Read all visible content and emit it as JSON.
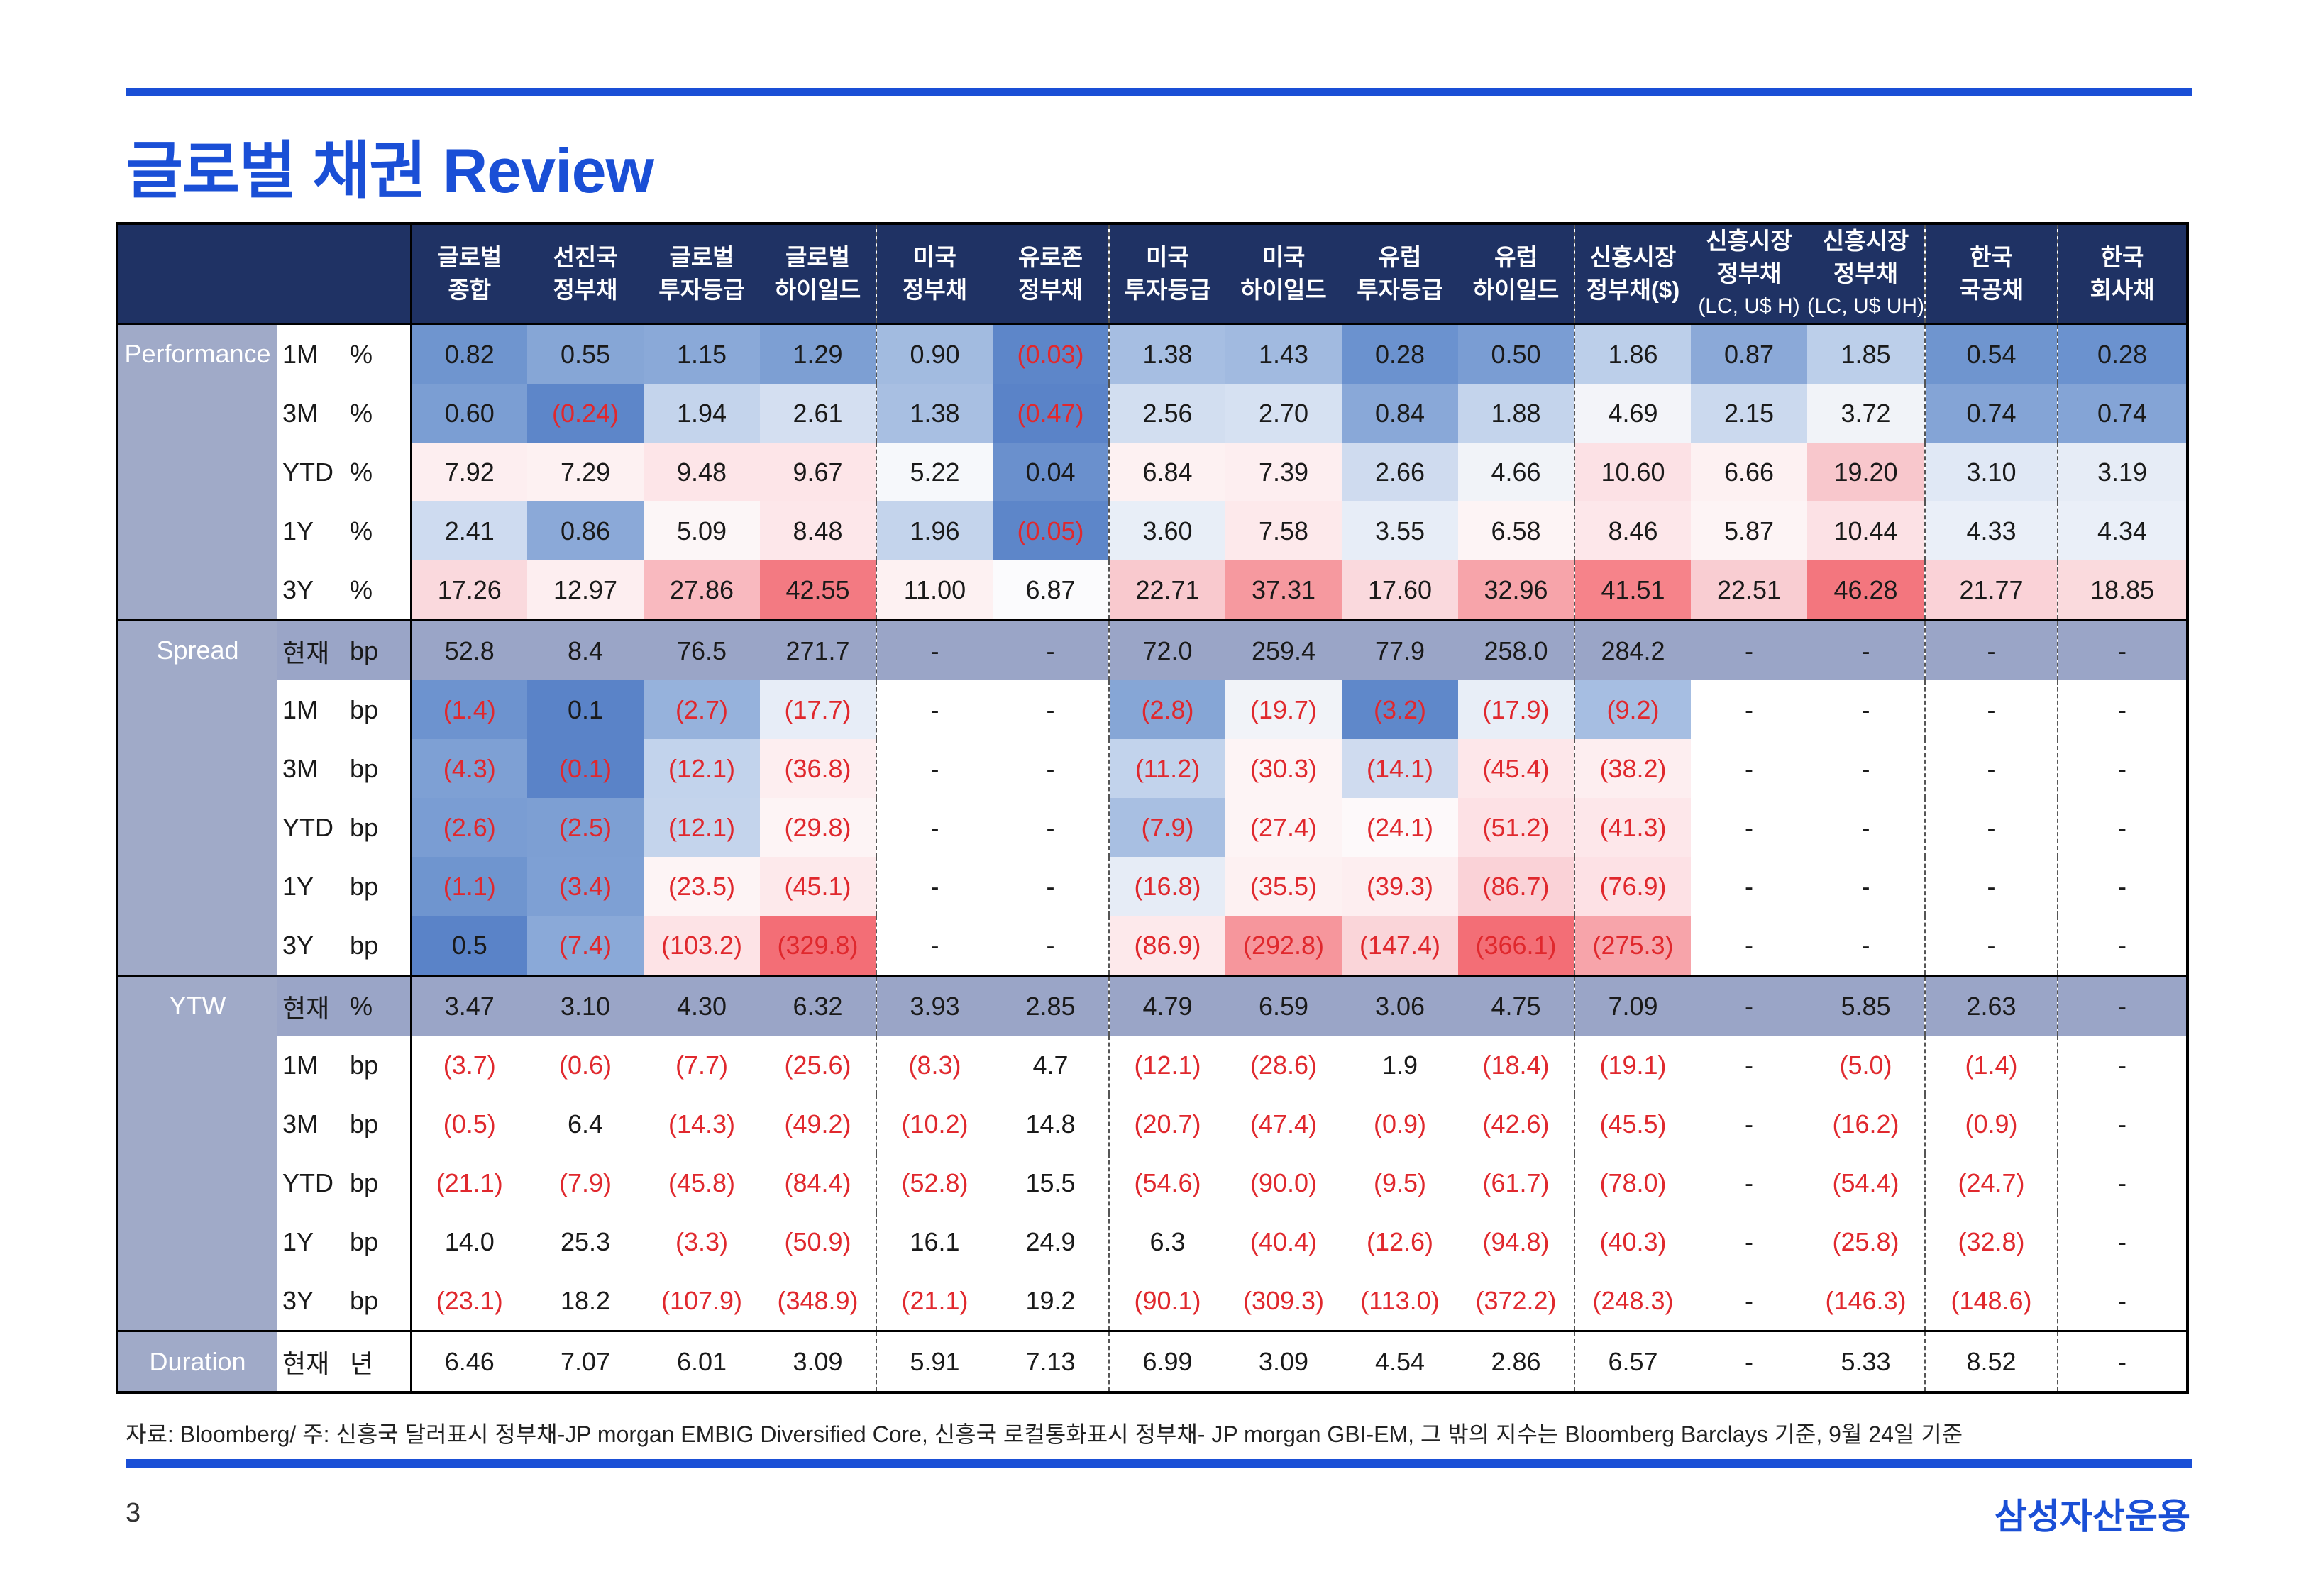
{
  "page": {
    "title": "글로벌 채권 Review",
    "page_number": "3",
    "brand": "삼성자산운용"
  },
  "footnote": "자료: Bloomberg/ 주: 신흥국 달러표시 정부채-JP morgan EMBIG Diversified Core, 신흥국 로컬통화표시 정부채- JP morgan GBI-EM, 그 밖의 지수는 Bloomberg Barclays 기준, 9월 24일 기준",
  "colors": {
    "accent": "#1a4fd6",
    "header_bg": "#1f3264",
    "section_bg": "#a0aac8",
    "negative": "#e0282d"
  },
  "columns": [
    {
      "line1": "글로벌",
      "line2": "종합",
      "sub": ""
    },
    {
      "line1": "선진국",
      "line2": "정부채",
      "sub": ""
    },
    {
      "line1": "글로벌",
      "line2": "투자등급",
      "sub": ""
    },
    {
      "line1": "글로벌",
      "line2": "하이일드",
      "sub": ""
    },
    {
      "line1": "미국",
      "line2": "정부채",
      "sub": ""
    },
    {
      "line1": "유로존",
      "line2": "정부채",
      "sub": ""
    },
    {
      "line1": "미국",
      "line2": "투자등급",
      "sub": ""
    },
    {
      "line1": "미국",
      "line2": "하이일드",
      "sub": ""
    },
    {
      "line1": "유럽",
      "line2": "투자등급",
      "sub": ""
    },
    {
      "line1": "유럽",
      "line2": "하이일드",
      "sub": ""
    },
    {
      "line1": "신흥시장",
      "line2": "정부채($)",
      "sub": ""
    },
    {
      "line1": "신흥시장",
      "line2": "정부채",
      "sub": "(LC, U$ H)"
    },
    {
      "line1": "신흥시장",
      "line2": "정부채",
      "sub": "(LC, U$ UH)"
    },
    {
      "line1": "한국",
      "line2": "국공채",
      "sub": ""
    },
    {
      "line1": "한국",
      "line2": "회사채",
      "sub": ""
    }
  ],
  "sections": [
    {
      "name": "Performance",
      "rows": [
        {
          "period": "1M",
          "unit": "%",
          "values": [
            "0.82",
            "0.55",
            "1.15",
            "1.29",
            "0.90",
            "(0.03)",
            "1.38",
            "1.43",
            "0.28",
            "0.50",
            "1.86",
            "0.87",
            "1.85",
            "0.54",
            "0.28"
          ]
        },
        {
          "period": "3M",
          "unit": "%",
          "values": [
            "0.60",
            "(0.24)",
            "1.94",
            "2.61",
            "1.38",
            "(0.47)",
            "2.56",
            "2.70",
            "0.84",
            "1.88",
            "4.69",
            "2.15",
            "3.72",
            "0.74",
            "0.74"
          ]
        },
        {
          "period": "YTD",
          "unit": "%",
          "values": [
            "7.92",
            "7.29",
            "9.48",
            "9.67",
            "5.22",
            "0.04",
            "6.84",
            "7.39",
            "2.66",
            "4.66",
            "10.60",
            "6.66",
            "19.20",
            "3.10",
            "3.19"
          ]
        },
        {
          "period": "1Y",
          "unit": "%",
          "values": [
            "2.41",
            "0.86",
            "5.09",
            "8.48",
            "1.96",
            "(0.05)",
            "3.60",
            "7.58",
            "3.55",
            "6.58",
            "8.46",
            "5.87",
            "10.44",
            "4.33",
            "4.34"
          ]
        },
        {
          "period": "3Y",
          "unit": "%",
          "values": [
            "17.26",
            "12.97",
            "27.86",
            "42.55",
            "11.00",
            "6.87",
            "22.71",
            "37.31",
            "17.60",
            "32.96",
            "41.51",
            "22.51",
            "46.28",
            "21.77",
            "18.85"
          ]
        }
      ]
    },
    {
      "name": "Spread",
      "rows": [
        {
          "period": "현재",
          "unit": "bp",
          "values": [
            "52.8",
            "8.4",
            "76.5",
            "271.7",
            "-",
            "-",
            "72.0",
            "259.4",
            "77.9",
            "258.0",
            "284.2",
            "-",
            "-",
            "-",
            "-"
          ]
        },
        {
          "period": "1M",
          "unit": "bp",
          "values": [
            "(1.4)",
            "0.1",
            "(2.7)",
            "(17.7)",
            "-",
            "-",
            "(2.8)",
            "(19.7)",
            "(3.2)",
            "(17.9)",
            "(9.2)",
            "-",
            "-",
            "-",
            "-"
          ]
        },
        {
          "period": "3M",
          "unit": "bp",
          "values": [
            "(4.3)",
            "(0.1)",
            "(12.1)",
            "(36.8)",
            "-",
            "-",
            "(11.2)",
            "(30.3)",
            "(14.1)",
            "(45.4)",
            "(38.2)",
            "-",
            "-",
            "-",
            "-"
          ]
        },
        {
          "period": "YTD",
          "unit": "bp",
          "values": [
            "(2.6)",
            "(2.5)",
            "(12.1)",
            "(29.8)",
            "-",
            "-",
            "(7.9)",
            "(27.4)",
            "(24.1)",
            "(51.2)",
            "(41.3)",
            "-",
            "-",
            "-",
            "-"
          ]
        },
        {
          "period": "1Y",
          "unit": "bp",
          "values": [
            "(1.1)",
            "(3.4)",
            "(23.5)",
            "(45.1)",
            "-",
            "-",
            "(16.8)",
            "(35.5)",
            "(39.3)",
            "(86.7)",
            "(76.9)",
            "-",
            "-",
            "-",
            "-"
          ]
        },
        {
          "period": "3Y",
          "unit": "bp",
          "values": [
            "0.5",
            "(7.4)",
            "(103.2)",
            "(329.8)",
            "-",
            "-",
            "(86.9)",
            "(292.8)",
            "(147.4)",
            "(366.1)",
            "(275.3)",
            "-",
            "-",
            "-",
            "-"
          ]
        }
      ]
    },
    {
      "name": "YTW",
      "rows": [
        {
          "period": "현재",
          "unit": "%",
          "values": [
            "3.47",
            "3.10",
            "4.30",
            "6.32",
            "3.93",
            "2.85",
            "4.79",
            "6.59",
            "3.06",
            "4.75",
            "7.09",
            "-",
            "5.85",
            "2.63",
            "-"
          ]
        },
        {
          "period": "1M",
          "unit": "bp",
          "values": [
            "(3.7)",
            "(0.6)",
            "(7.7)",
            "(25.6)",
            "(8.3)",
            "4.7",
            "(12.1)",
            "(28.6)",
            "1.9",
            "(18.4)",
            "(19.1)",
            "-",
            "(5.0)",
            "(1.4)",
            "-"
          ]
        },
        {
          "period": "3M",
          "unit": "bp",
          "values": [
            "(0.5)",
            "6.4",
            "(14.3)",
            "(49.2)",
            "(10.2)",
            "14.8",
            "(20.7)",
            "(47.4)",
            "(0.9)",
            "(42.6)",
            "(45.5)",
            "-",
            "(16.2)",
            "(0.9)",
            "-"
          ]
        },
        {
          "period": "YTD",
          "unit": "bp",
          "values": [
            "(21.1)",
            "(7.9)",
            "(45.8)",
            "(84.4)",
            "(52.8)",
            "15.5",
            "(54.6)",
            "(90.0)",
            "(9.5)",
            "(61.7)",
            "(78.0)",
            "-",
            "(54.4)",
            "(24.7)",
            "-"
          ]
        },
        {
          "period": "1Y",
          "unit": "bp",
          "values": [
            "14.0",
            "25.3",
            "(3.3)",
            "(50.9)",
            "16.1",
            "24.9",
            "6.3",
            "(40.4)",
            "(12.6)",
            "(94.8)",
            "(40.3)",
            "-",
            "(25.8)",
            "(32.8)",
            "-"
          ]
        },
        {
          "period": "3Y",
          "unit": "bp",
          "values": [
            "(23.1)",
            "18.2",
            "(107.9)",
            "(348.9)",
            "(21.1)",
            "19.2",
            "(90.1)",
            "(309.3)",
            "(113.0)",
            "(372.2)",
            "(248.3)",
            "-",
            "(146.3)",
            "(148.6)",
            "-"
          ]
        }
      ]
    },
    {
      "name": "Duration",
      "rows": [
        {
          "period": "현재",
          "unit": "년",
          "values": [
            "6.46",
            "7.07",
            "6.01",
            "3.09",
            "5.91",
            "7.13",
            "6.99",
            "3.09",
            "4.54",
            "2.86",
            "6.57",
            "-",
            "5.33",
            "8.52",
            "-"
          ]
        }
      ]
    }
  ],
  "heatmap": {
    "0": [
      "#6f95cf",
      "#86a6d6",
      "#8aa9d8",
      "#7d9fd3",
      "#a2bbe0",
      "#5d86c9",
      "#a6bee2",
      "#a1bae0",
      "#6b92cf",
      "#7a9dd3",
      "#bccfea",
      "#8ba9d8",
      "#bccfea",
      "#6f95cf",
      "#6b92cf"
    ],
    "1": [
      "#7b9ed3",
      "#5d86c9",
      "#c4d4ec",
      "#d4dff1",
      "#a8bfe2",
      "#5a83c8",
      "#d2def0",
      "#d6e1f2",
      "#89a8d8",
      "#c4d4ec",
      "#f3f4f9",
      "#cbd9ee",
      "#f1f3f8",
      "#84a4d6",
      "#84a4d6"
    ],
    "2": [
      "#fdeef0",
      "#fdf1f2",
      "#fde5e8",
      "#fde5e8",
      "#f6f8fb",
      "#6a90cd",
      "#fdf1f2",
      "#fdeef0",
      "#cfdbef",
      "#f1f3f8",
      "#fce1e5",
      "#fdf1f2",
      "#f8c7cc",
      "#e0e8f5",
      "#e6ecf6"
    ],
    "3": [
      "#cedbf0",
      "#8ba9d8",
      "#fcf6f7",
      "#fde7ea",
      "#c4d4ec",
      "#5d86c9",
      "#e8eef7",
      "#fde9eb",
      "#e7edf7",
      "#fdf4f5",
      "#fde7ea",
      "#fdf4f5",
      "#fce1e5",
      "#eaeff8",
      "#eaeff8"
    ],
    "4": [
      "#fad9dd",
      "#fdeef0",
      "#f9b9bf",
      "#f37a82",
      "#fdf1f2",
      "#fbfbfd",
      "#f9c9ce",
      "#f6999f",
      "#fad9dd",
      "#f7a4aa",
      "#f6838a",
      "#f9cdd2",
      "#f3767e",
      "#fad2d7",
      "#fadadd"
    ],
    "6": [
      "#6d93cf",
      "#5a83c8",
      "#96b2dc",
      "#e7edf7",
      "#ffffff",
      "#ffffff",
      "#86a6d6",
      "#f1f3f8",
      "#5f88ca",
      "#e8eef7",
      "#a6bee2",
      "#ffffff",
      "#ffffff",
      "#ffffff",
      "#ffffff"
    ],
    "7": [
      "#7ea0d4",
      "#5a83c8",
      "#c2d3ec",
      "#fdeef0",
      "#ffffff",
      "#ffffff",
      "#c2d3ec",
      "#fdf4f5",
      "#cfdbef",
      "#fde7ea",
      "#fdeef0",
      "#ffffff",
      "#ffffff",
      "#ffffff",
      "#ffffff"
    ],
    "8": [
      "#7a9dd3",
      "#7d9fd3",
      "#c4d4ec",
      "#fdf4f5",
      "#ffffff",
      "#ffffff",
      "#a8bfe2",
      "#fdf4f5",
      "#fdf9fa",
      "#fde1e5",
      "#fde7ea",
      "#ffffff",
      "#ffffff",
      "#ffffff",
      "#ffffff"
    ],
    "9": [
      "#6f95cf",
      "#7ea0d4",
      "#fdf4f5",
      "#fde9eb",
      "#ffffff",
      "#ffffff",
      "#e6ecf6",
      "#fdf1f2",
      "#fdeef0",
      "#fad2d7",
      "#fde1e5",
      "#ffffff",
      "#ffffff",
      "#ffffff",
      "#ffffff"
    ],
    "10": [
      "#5a83c8",
      "#8aa9d8",
      "#fde3e6",
      "#f36e76",
      "#ffffff",
      "#ffffff",
      "#fde9eb",
      "#f6969c",
      "#fad5d9",
      "#f36e76",
      "#f7a4aa",
      "#ffffff",
      "#ffffff",
      "#ffffff",
      "#ffffff"
    ]
  }
}
